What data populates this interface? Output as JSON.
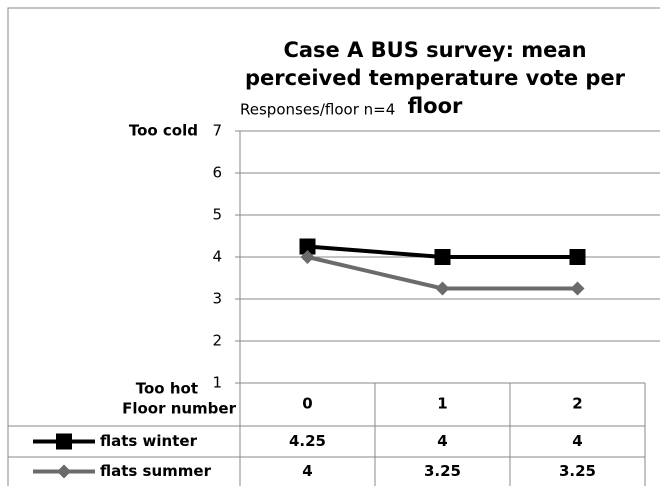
{
  "chart_data": {
    "type": "line",
    "title": "Case A BUS survey: mean perceived temperature vote per floor",
    "subtitle": "Responses/floor n=4",
    "y_top_label": "Too cold",
    "y_bottom_label": "Too hot",
    "x_label": "Floor number",
    "categories": [
      "0",
      "1",
      "2"
    ],
    "series": [
      {
        "name": "flats winter",
        "color": "#000000",
        "marker": "square",
        "values": [
          4.25,
          4,
          4
        ]
      },
      {
        "name": "flats summer",
        "color": "#6b6b6b",
        "marker": "diamond",
        "values": [
          4,
          3.25,
          3.25
        ]
      }
    ],
    "ylim": [
      1,
      7
    ],
    "yticks": [
      1,
      2,
      3,
      4,
      5,
      6,
      7
    ],
    "grid": true
  }
}
